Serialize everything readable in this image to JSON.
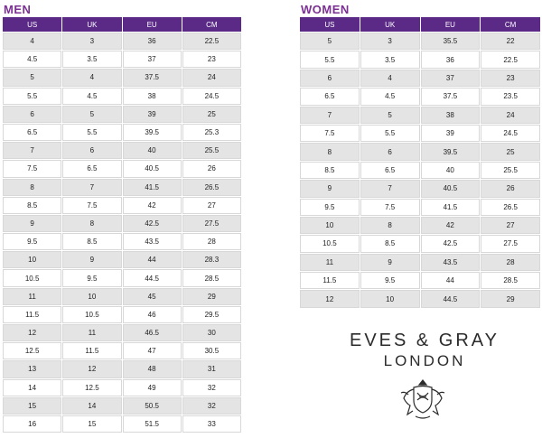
{
  "men": {
    "title": "MEN",
    "headers": [
      "US",
      "UK",
      "EU",
      "CM"
    ],
    "rows": [
      [
        "4",
        "3",
        "36",
        "22.5"
      ],
      [
        "4.5",
        "3.5",
        "37",
        "23"
      ],
      [
        "5",
        "4",
        "37.5",
        "24"
      ],
      [
        "5.5",
        "4.5",
        "38",
        "24.5"
      ],
      [
        "6",
        "5",
        "39",
        "25"
      ],
      [
        "6.5",
        "5.5",
        "39.5",
        "25.3"
      ],
      [
        "7",
        "6",
        "40",
        "25.5"
      ],
      [
        "7.5",
        "6.5",
        "40.5",
        "26"
      ],
      [
        "8",
        "7",
        "41.5",
        "26.5"
      ],
      [
        "8.5",
        "7.5",
        "42",
        "27"
      ],
      [
        "9",
        "8",
        "42.5",
        "27.5"
      ],
      [
        "9.5",
        "8.5",
        "43.5",
        "28"
      ],
      [
        "10",
        "9",
        "44",
        "28.3"
      ],
      [
        "10.5",
        "9.5",
        "44.5",
        "28.5"
      ],
      [
        "11",
        "10",
        "45",
        "29"
      ],
      [
        "11.5",
        "10.5",
        "46",
        "29.5"
      ],
      [
        "12",
        "11",
        "46.5",
        "30"
      ],
      [
        "12.5",
        "11.5",
        "47",
        "30.5"
      ],
      [
        "13",
        "12",
        "48",
        "31"
      ],
      [
        "14",
        "12.5",
        "49",
        "32"
      ],
      [
        "15",
        "14",
        "50.5",
        "32"
      ],
      [
        "16",
        "15",
        "51.5",
        "33"
      ]
    ]
  },
  "women": {
    "title": "WOMEN",
    "headers": [
      "US",
      "UK",
      "EU",
      "CM"
    ],
    "rows": [
      [
        "5",
        "3",
        "35.5",
        "22"
      ],
      [
        "5.5",
        "3.5",
        "36",
        "22.5"
      ],
      [
        "6",
        "4",
        "37",
        "23"
      ],
      [
        "6.5",
        "4.5",
        "37.5",
        "23.5"
      ],
      [
        "7",
        "5",
        "38",
        "24"
      ],
      [
        "7.5",
        "5.5",
        "39",
        "24.5"
      ],
      [
        "8",
        "6",
        "39.5",
        "25"
      ],
      [
        "8.5",
        "6.5",
        "40",
        "25.5"
      ],
      [
        "9",
        "7",
        "40.5",
        "26"
      ],
      [
        "9.5",
        "7.5",
        "41.5",
        "26.5"
      ],
      [
        "10",
        "8",
        "42",
        "27"
      ],
      [
        "10.5",
        "8.5",
        "42.5",
        "27.5"
      ],
      [
        "11",
        "9",
        "43.5",
        "28"
      ],
      [
        "11.5",
        "9.5",
        "44",
        "28.5"
      ],
      [
        "12",
        "10",
        "44.5",
        "29"
      ]
    ]
  },
  "brand": {
    "name": "EVES & GRAY",
    "city": "LONDON",
    "crest_icon": "lion-crest-icon"
  },
  "colors": {
    "title": "#7b2f93",
    "header_bg": "#5b2a86",
    "row_alt": "#e4e4e4"
  }
}
